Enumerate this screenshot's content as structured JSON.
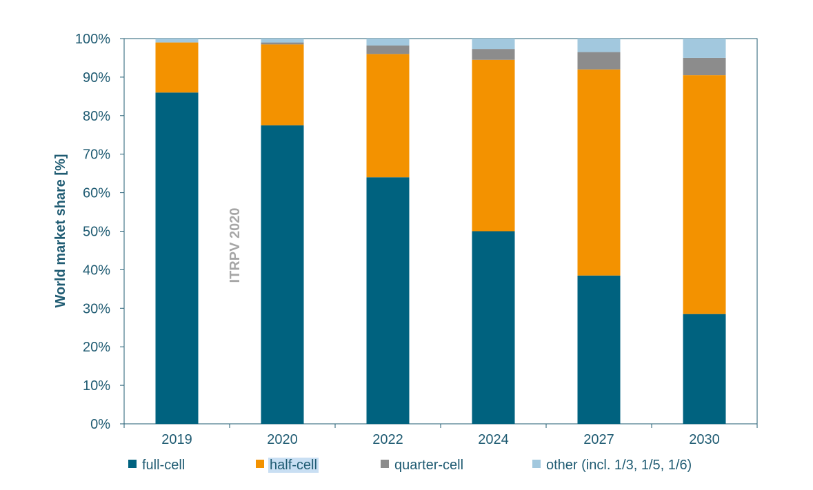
{
  "chart_data": {
    "type": "bar",
    "stacked": true,
    "categories": [
      "2019",
      "2020",
      "2022",
      "2024",
      "2027",
      "2030"
    ],
    "ylabel": "World market share [%]",
    "ylim": [
      0,
      100
    ],
    "yticks": [
      "0%",
      "10%",
      "20%",
      "30%",
      "40%",
      "50%",
      "60%",
      "70%",
      "80%",
      "90%",
      "100%"
    ],
    "series": [
      {
        "name": "full-cell",
        "color": "#00627f",
        "values": [
          86,
          77.5,
          64,
          50,
          38.5,
          28.5
        ]
      },
      {
        "name": "half-cell",
        "color": "#f39200",
        "values": [
          13,
          21,
          32,
          44.5,
          53.5,
          62
        ]
      },
      {
        "name": "quarter-cell",
        "color": "#8c8c8c",
        "values": [
          0,
          0.5,
          2.2,
          2.8,
          4.5,
          4.5
        ]
      },
      {
        "name": "other (incl. 1/3, 1/5, 1/6)",
        "color": "#a2c8de",
        "values": [
          1,
          1,
          1.8,
          2.7,
          3.5,
          5
        ]
      }
    ],
    "annotation": "ITRPV 2020",
    "grid": false,
    "legend_position": "bottom",
    "selected_legend_item": "half-cell"
  }
}
